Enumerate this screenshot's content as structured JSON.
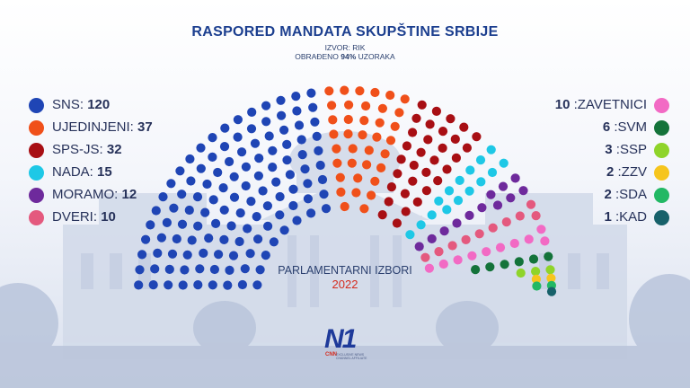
{
  "header": {
    "title": "RASPORED MANDATA SKUPŠTINE SRBIJE",
    "source": "IZVOR: RIK",
    "processed_prefix": "OBRAĐENO ",
    "processed_value": "94%",
    "processed_suffix": " UZORAKA"
  },
  "center": {
    "label": "PARLAMENTARNI IZBORI",
    "year": "2022"
  },
  "logo": {
    "mark": "N1",
    "partner": "CNN",
    "tagline": "EXCLUSIVE NEWS CHANNEL AFFILIATE"
  },
  "colors": {
    "SNS": "#1f45b5",
    "UJEDINJENI": "#f0501a",
    "SPS-JS": "#a80f14",
    "NADA": "#1ec8e6",
    "MORAMO": "#6e2a9c",
    "DVERI": "#e4597e",
    "ZAVETNICI": "#f26ac4",
    "SVM": "#14733a",
    "SSP": "#8fd42a",
    "ZZV": "#f6c51d",
    "SDA": "#22b864",
    "KAD": "#17616a"
  },
  "chart_data": {
    "type": "parliament",
    "title": "RASPORED MANDATA SKUPŠTINE SRBIJE",
    "total_seats": 250,
    "series": [
      {
        "name": "SNS",
        "value": 120
      },
      {
        "name": "UJEDINJENI",
        "value": 37
      },
      {
        "name": "SPS-JS",
        "value": 32
      },
      {
        "name": "NADA",
        "value": 15
      },
      {
        "name": "MORAMO",
        "value": 12
      },
      {
        "name": "DVERI",
        "value": 10
      },
      {
        "name": "ZAVETNICI",
        "value": 10
      },
      {
        "name": "SVM",
        "value": 6
      },
      {
        "name": "SSP",
        "value": 3
      },
      {
        "name": "ZZV",
        "value": 2
      },
      {
        "name": "SDA",
        "value": 2
      },
      {
        "name": "KAD",
        "value": 1
      }
    ],
    "legend_left": [
      {
        "name": "SNS",
        "label": "SNS: ",
        "value": "120"
      },
      {
        "name": "UJEDINJENI",
        "label": "UJEDINJENI: ",
        "value": "37"
      },
      {
        "name": "SPS-JS",
        "label": "SPS-JS: ",
        "value": "32"
      },
      {
        "name": "NADA",
        "label": "NADA: ",
        "value": "15"
      },
      {
        "name": "MORAMO",
        "label": "MORAMO: ",
        "value": "12"
      },
      {
        "name": "DVERI",
        "label": "DVERI: ",
        "value": "10"
      }
    ],
    "legend_right": [
      {
        "name": "ZAVETNICI",
        "value": "10",
        "label": " :ZAVETNICI"
      },
      {
        "name": "SVM",
        "value": "6",
        "label": " :SVM"
      },
      {
        "name": "SSP",
        "value": "3",
        "label": " :SSP"
      },
      {
        "name": "ZZV",
        "value": "2",
        "label": " :ZZV"
      },
      {
        "name": "SDA",
        "value": "2",
        "label": " :SDA"
      },
      {
        "name": "KAD",
        "value": "1",
        "label": " :KAD"
      }
    ]
  }
}
